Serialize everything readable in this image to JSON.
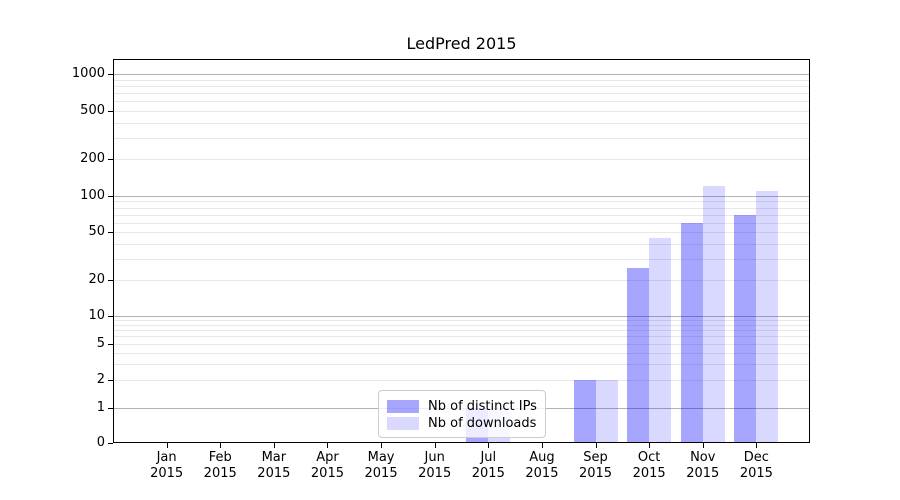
{
  "title": "LedPred 2015",
  "chart_data": {
    "type": "bar",
    "title": "LedPred 2015",
    "scale": "symlog (log above 1, linear 0-1)",
    "grid": true,
    "categories": [
      "Jan 2015",
      "Feb 2015",
      "Mar 2015",
      "Apr 2015",
      "May 2015",
      "Jun 2015",
      "Jul 2015",
      "Aug 2015",
      "Sep 2015",
      "Oct 2015",
      "Nov 2015",
      "Dec 2015"
    ],
    "series": [
      {
        "name": "Nb of distinct IPs",
        "color": "rgba(0,0,255,0.35)",
        "values": [
          0,
          0,
          0,
          0,
          0,
          0,
          1,
          0,
          2,
          25,
          60,
          70
        ]
      },
      {
        "name": "Nb of downloads",
        "color": "rgba(0,0,255,0.15)",
        "values": [
          0,
          0,
          0,
          0,
          0,
          0,
          1,
          0,
          2,
          45,
          120,
          110
        ]
      }
    ],
    "xlabel": "",
    "ylabel": "",
    "ylim": [
      0,
      1300
    ],
    "yticks": [
      0,
      1,
      2,
      5,
      10,
      20,
      50,
      100,
      200,
      500,
      1000
    ],
    "grid_major": [
      1,
      10,
      100,
      1000
    ],
    "grid_minor": [
      2,
      3,
      4,
      5,
      6,
      7,
      8,
      9,
      20,
      30,
      40,
      50,
      60,
      70,
      80,
      90,
      200,
      300,
      400,
      500,
      600,
      700,
      800,
      900
    ],
    "legend": {
      "entries": [
        "Nb of distinct IPs",
        "Nb of downloads"
      ],
      "position": "lower center",
      "framed": true
    }
  },
  "colors": {
    "grid_major": "#b3b3b3",
    "grid_minor": "#e8e8e8",
    "spine": "#000000",
    "text": "#000000",
    "background": "#ffffff",
    "legend_border": "#cccccc",
    "legend_background": "rgba(255,255,255,0.8)",
    "bar_distinct_ips": "rgba(0,0,255,0.35)",
    "bar_downloads": "rgba(0,0,255,0.15)"
  }
}
